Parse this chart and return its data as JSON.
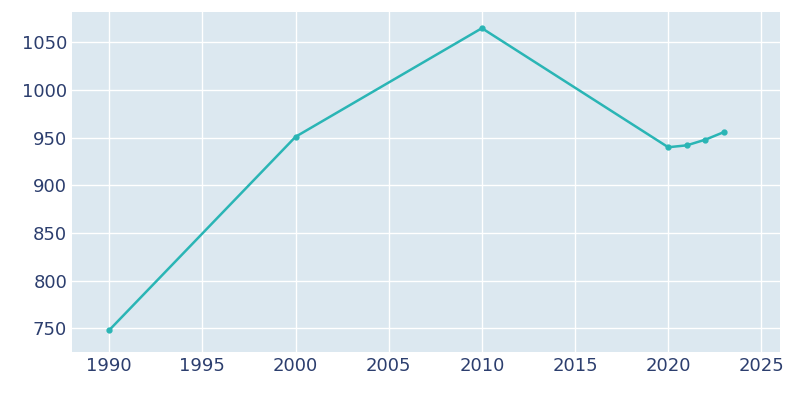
{
  "years": [
    1990,
    2000,
    2010,
    2020,
    2021,
    2022,
    2023
  ],
  "population": [
    748,
    951,
    1065,
    940,
    942,
    948,
    956
  ],
  "line_color": "#2ab5b5",
  "marker": "o",
  "marker_size": 3.5,
  "bg_color": "#ffffff",
  "plot_bg_color": "#dce8f0",
  "grid_color": "#ffffff",
  "tick_color": "#2c3e6e",
  "xlim": [
    1988,
    2026
  ],
  "ylim": [
    725,
    1082
  ],
  "xticks": [
    1990,
    1995,
    2000,
    2005,
    2010,
    2015,
    2020,
    2025
  ],
  "yticks": [
    750,
    800,
    850,
    900,
    950,
    1000,
    1050
  ],
  "tick_fontsize": 13,
  "linewidth": 1.8
}
